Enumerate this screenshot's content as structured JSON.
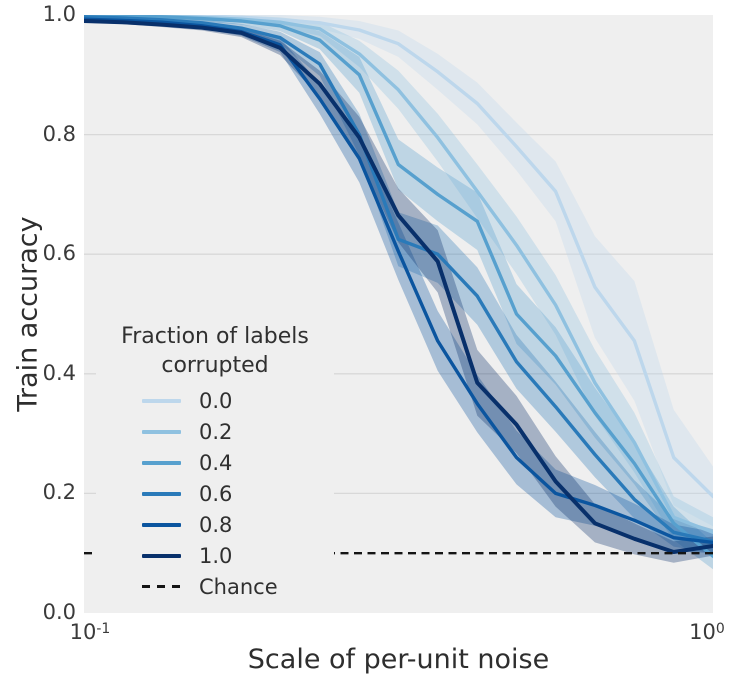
{
  "figure": {
    "plot_bg_color": "#efefef",
    "grid_color": "#d8d8d8",
    "tick_color": "#3a3a3a",
    "label_color": "#2e2e2e"
  },
  "chart_data": {
    "type": "line",
    "title": "",
    "xlabel": "Scale of per-unit noise",
    "ylabel": "Train accuracy",
    "x_scale": "log",
    "xlim": [
      0.1,
      1.0
    ],
    "ylim": [
      0.0,
      1.0
    ],
    "grid": "horizontal",
    "x_ticks": [
      {
        "base": "10",
        "exp": "-1",
        "value": 0.1
      },
      {
        "base": "10",
        "exp": "0",
        "value": 1.0
      }
    ],
    "y_ticks": [
      {
        "label": "1.0",
        "value": 1.0
      },
      {
        "label": "0.8",
        "value": 0.8
      },
      {
        "label": "0.6",
        "value": 0.6
      },
      {
        "label": "0.4",
        "value": 0.4
      },
      {
        "label": "0.2",
        "value": 0.2
      },
      {
        "label": "0.0",
        "value": 0.0
      }
    ],
    "legend": {
      "title_line1": "Fraction of labels",
      "title_line2": "corrupted",
      "position": "lower left inside"
    },
    "x": [
      0.1,
      0.115,
      0.133,
      0.154,
      0.178,
      0.205,
      0.237,
      0.274,
      0.316,
      0.365,
      0.422,
      0.487,
      0.562,
      0.649,
      0.75,
      0.866,
      1.0
    ],
    "series": [
      {
        "name": "0.0",
        "color": "#bdd7ec",
        "values": [
          1.0,
          1.0,
          0.999,
          0.998,
          0.996,
          0.992,
          0.987,
          0.975,
          0.952,
          0.905,
          0.852,
          0.78,
          0.705,
          0.545,
          0.455,
          0.26,
          0.195
        ],
        "spread": [
          0.004,
          0.004,
          0.005,
          0.005,
          0.006,
          0.008,
          0.01,
          0.015,
          0.022,
          0.03,
          0.035,
          0.04,
          0.05,
          0.085,
          0.1,
          0.08,
          0.05
        ]
      },
      {
        "name": "0.2",
        "color": "#8fc1e0",
        "values": [
          1.0,
          0.999,
          0.998,
          0.996,
          0.993,
          0.988,
          0.977,
          0.935,
          0.875,
          0.795,
          0.705,
          0.615,
          0.515,
          0.385,
          0.285,
          0.16,
          0.135
        ],
        "spread": [
          0.003,
          0.004,
          0.004,
          0.005,
          0.006,
          0.008,
          0.012,
          0.022,
          0.032,
          0.04,
          0.045,
          0.048,
          0.05,
          0.055,
          0.05,
          0.035,
          0.025
        ]
      },
      {
        "name": "0.4",
        "color": "#57a0ce",
        "values": [
          0.999,
          0.998,
          0.997,
          0.994,
          0.99,
          0.982,
          0.958,
          0.9,
          0.75,
          0.7,
          0.655,
          0.5,
          0.43,
          0.335,
          0.25,
          0.15,
          0.095
        ],
        "spread": [
          0.003,
          0.004,
          0.004,
          0.005,
          0.006,
          0.009,
          0.015,
          0.03,
          0.042,
          0.045,
          0.048,
          0.05,
          0.048,
          0.042,
          0.035,
          0.028,
          0.022
        ]
      },
      {
        "name": "0.6",
        "color": "#2a7ab9",
        "values": [
          0.997,
          0.995,
          0.992,
          0.987,
          0.978,
          0.962,
          0.918,
          0.8,
          0.625,
          0.6,
          0.53,
          0.42,
          0.345,
          0.265,
          0.19,
          0.135,
          0.12
        ],
        "spread": [
          0.003,
          0.004,
          0.004,
          0.005,
          0.007,
          0.01,
          0.02,
          0.035,
          0.045,
          0.048,
          0.048,
          0.045,
          0.042,
          0.038,
          0.032,
          0.024,
          0.02
        ]
      },
      {
        "name": "0.8",
        "color": "#0b559f",
        "values": [
          0.993,
          0.991,
          0.988,
          0.982,
          0.972,
          0.95,
          0.86,
          0.76,
          0.605,
          0.455,
          0.35,
          0.26,
          0.2,
          0.18,
          0.155,
          0.126,
          0.118
        ],
        "spread": [
          0.003,
          0.004,
          0.004,
          0.005,
          0.007,
          0.012,
          0.025,
          0.04,
          0.048,
          0.05,
          0.048,
          0.045,
          0.04,
          0.034,
          0.028,
          0.022,
          0.018
        ]
      },
      {
        "name": "1.0",
        "color": "#08306b",
        "values": [
          0.99,
          0.988,
          0.984,
          0.979,
          0.97,
          0.945,
          0.885,
          0.795,
          0.665,
          0.588,
          0.385,
          0.315,
          0.22,
          0.15,
          0.124,
          0.102,
          0.112
        ],
        "spread": [
          0.003,
          0.003,
          0.004,
          0.005,
          0.007,
          0.012,
          0.022,
          0.035,
          0.045,
          0.052,
          0.055,
          0.048,
          0.042,
          0.032,
          0.026,
          0.018,
          0.016
        ]
      }
    ],
    "chance": {
      "label": "Chance",
      "value": 0.1,
      "color": "#141414",
      "style": "dashed"
    }
  }
}
